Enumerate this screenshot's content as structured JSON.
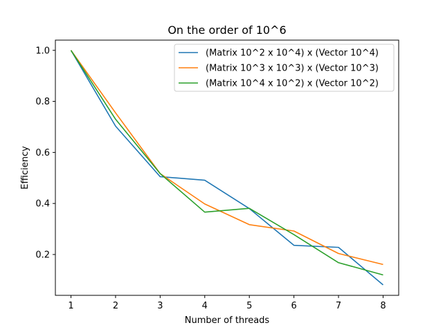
{
  "chart_data": {
    "type": "line",
    "title": "On the order of 10^6",
    "xlabel": "Number of threads",
    "ylabel": "Efficiency",
    "x": [
      1,
      2,
      3,
      4,
      5,
      6,
      7,
      8
    ],
    "xticks": [
      "1",
      "2",
      "3",
      "4",
      "5",
      "6",
      "7",
      "8"
    ],
    "yticks": [
      "0.2",
      "0.4",
      "0.6",
      "0.8",
      "1.0"
    ],
    "xlim": [
      0.65,
      8.35
    ],
    "ylim": [
      0.04,
      1.04
    ],
    "grid": false,
    "legend_position": "top-right",
    "series": [
      {
        "name": "(Matrix 10^2 x 10^4) x (Vector 10^4)",
        "color": "#1f77b4",
        "values": [
          1.0,
          0.703,
          0.505,
          0.491,
          0.38,
          0.236,
          0.228,
          0.081
        ]
      },
      {
        "name": "(Matrix 10^3 x 10^3) x (Vector 10^3)",
        "color": "#ff7f0e",
        "values": [
          1.0,
          0.755,
          0.517,
          0.398,
          0.317,
          0.292,
          0.204,
          0.161
        ]
      },
      {
        "name": "(Matrix 10^4 x 10^2) x (Vector 10^2)",
        "color": "#2ca02c",
        "values": [
          1.0,
          0.73,
          0.517,
          0.366,
          0.381,
          0.278,
          0.168,
          0.12
        ]
      }
    ]
  }
}
